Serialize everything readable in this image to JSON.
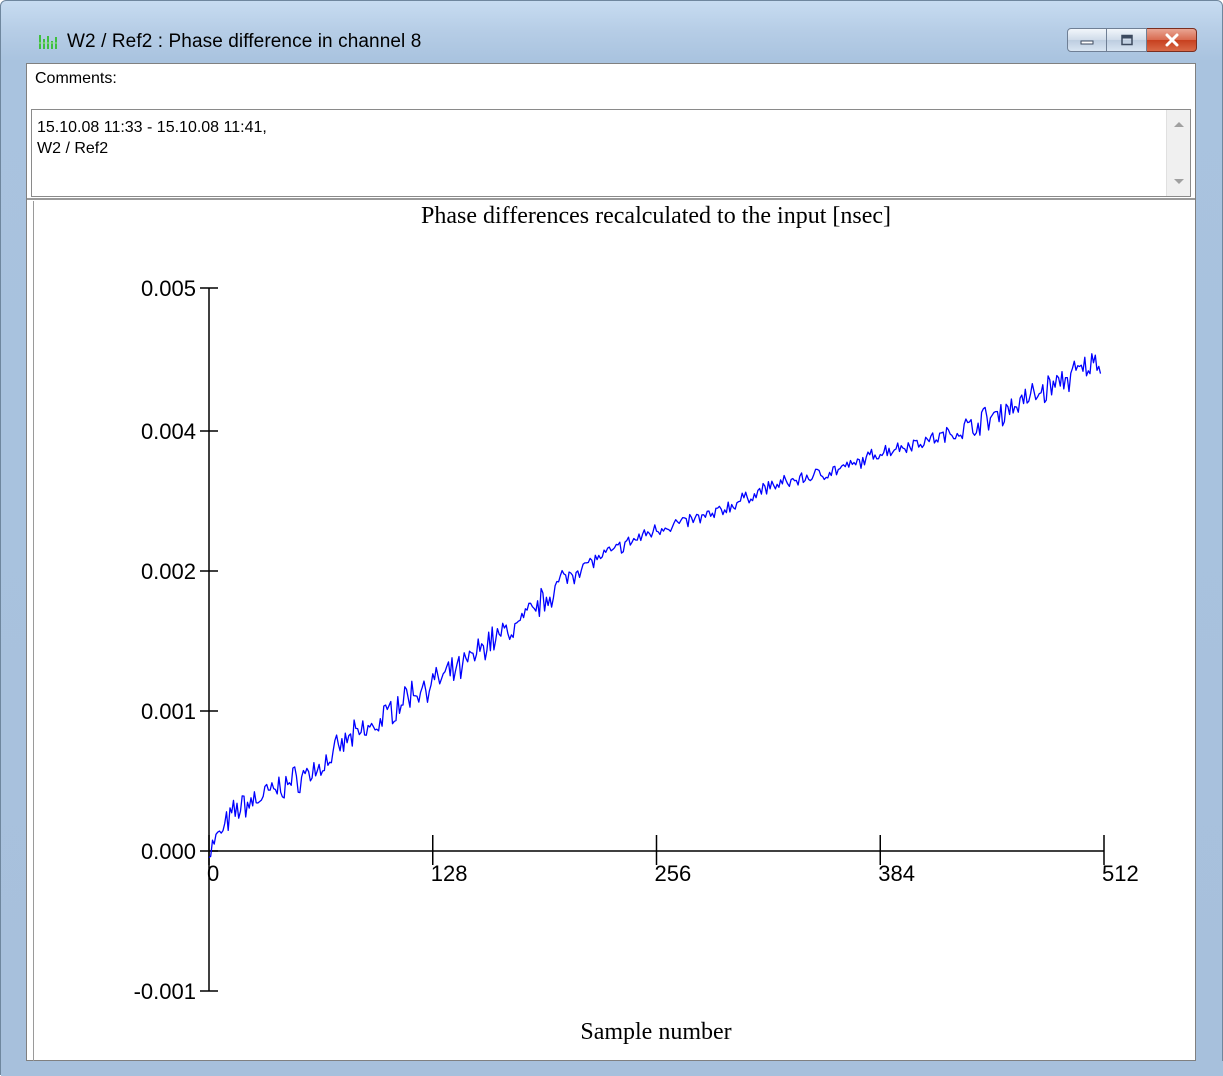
{
  "window": {
    "title": "W2 / Ref2 : Phase difference in channel 8",
    "icon": "chart-app-icon",
    "buttons": [
      "minimize-icon",
      "maximize-icon",
      "close-icon"
    ]
  },
  "comments": {
    "label": "Comments:",
    "line1": "15.10.08 11:33 - 15.10.08 11:41,",
    "line2": "W2 / Ref2"
  },
  "colors": {
    "series": "#0000ff",
    "frame": "#a7c0dc",
    "close_button": "#c7401f"
  },
  "chart_data": {
    "type": "line",
    "title": "Phase differences recalculated to the input [nsec]",
    "xlabel": "Sample number",
    "ylabel": "",
    "x_ticks": [
      0,
      128,
      256,
      384,
      512
    ],
    "y_ticks": [
      "0.005",
      "0.004",
      "0.002",
      "0.001",
      "0.000",
      "-0.001"
    ],
    "grid": false,
    "legend": "none",
    "series": [
      {
        "x": [
          0,
          16,
          32,
          48,
          64,
          80,
          96,
          112,
          128,
          144,
          160,
          176,
          192,
          208,
          224,
          240,
          256,
          272,
          288,
          304,
          320,
          336,
          352,
          368,
          384,
          400,
          416,
          432,
          448,
          464,
          480,
          496,
          510
        ],
        "values": [
          0.0,
          0.0003,
          0.0004,
          0.0005,
          0.0006,
          0.0008,
          0.0009,
          0.0011,
          0.0012,
          0.0013,
          0.0015,
          0.0016,
          0.0018,
          0.002,
          0.0022,
          0.0024,
          0.0026,
          0.0027,
          0.0028,
          0.003,
          0.0032,
          0.0033,
          0.0034,
          0.0035,
          0.0037,
          0.0038,
          0.0039,
          0.004,
          0.0041,
          0.0042,
          0.0043,
          0.0044,
          0.0045
        ],
        "noise_amplitude": 8e-05
      }
    ]
  }
}
